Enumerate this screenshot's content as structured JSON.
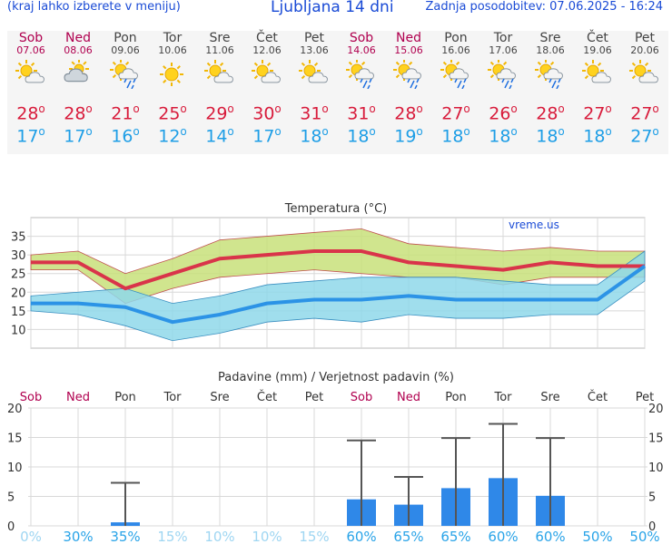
{
  "header": {
    "hint": "(kraj lahko izberete v meniju)",
    "title": "Ljubljana 14 dni",
    "updated": "Zadnja posodobitev: 07.06.2025 - 16:24"
  },
  "days": [
    {
      "name": "Sob",
      "date": "07.06",
      "weekend": true,
      "icon": "partly-cloudy-icon",
      "tmax": "28",
      "tmin": "17"
    },
    {
      "name": "Ned",
      "date": "08.06",
      "weekend": true,
      "icon": "cloudy-sun-icon",
      "tmax": "28",
      "tmin": "17"
    },
    {
      "name": "Pon",
      "date": "09.06",
      "weekend": false,
      "icon": "sun-rain-icon",
      "tmax": "21",
      "tmin": "16"
    },
    {
      "name": "Tor",
      "date": "10.06",
      "weekend": false,
      "icon": "sun-icon",
      "tmax": "25",
      "tmin": "12"
    },
    {
      "name": "Sre",
      "date": "11.06",
      "weekend": false,
      "icon": "partly-cloudy-icon",
      "tmax": "29",
      "tmin": "14"
    },
    {
      "name": "Čet",
      "date": "12.06",
      "weekend": false,
      "icon": "partly-cloudy-icon",
      "tmax": "30",
      "tmin": "17"
    },
    {
      "name": "Pet",
      "date": "13.06",
      "weekend": false,
      "icon": "partly-cloudy-icon",
      "tmax": "31",
      "tmin": "18"
    },
    {
      "name": "Sob",
      "date": "14.06",
      "weekend": true,
      "icon": "sun-rain-icon",
      "tmax": "31",
      "tmin": "18"
    },
    {
      "name": "Ned",
      "date": "15.06",
      "weekend": true,
      "icon": "sun-rain-icon",
      "tmax": "28",
      "tmin": "19"
    },
    {
      "name": "Pon",
      "date": "16.06",
      "weekend": false,
      "icon": "sun-rain-icon",
      "tmax": "27",
      "tmin": "18"
    },
    {
      "name": "Tor",
      "date": "17.06",
      "weekend": false,
      "icon": "sun-rain-icon",
      "tmax": "26",
      "tmin": "18"
    },
    {
      "name": "Sre",
      "date": "18.06",
      "weekend": false,
      "icon": "sun-rain-icon",
      "tmax": "28",
      "tmin": "18"
    },
    {
      "name": "Čet",
      "date": "19.06",
      "weekend": false,
      "icon": "partly-cloudy-icon",
      "tmax": "27",
      "tmin": "18"
    },
    {
      "name": "Pet",
      "date": "20.06",
      "weekend": false,
      "icon": "partly-cloudy-icon",
      "tmax": "27",
      "tmin": "27"
    }
  ],
  "chart_data": [
    {
      "type": "line",
      "title": "Temperatura (°C)",
      "watermark": "vreme.us",
      "ylim": [
        5,
        40
      ],
      "yticks": [
        10,
        15,
        20,
        25,
        30,
        35
      ],
      "grid": true,
      "series": [
        {
          "key": "tmax",
          "color": "#d9344a",
          "values": [
            28,
            28,
            21,
            25,
            29,
            30,
            31,
            31,
            28,
            27,
            26,
            28,
            27,
            27
          ]
        },
        {
          "key": "tmax_upper",
          "color": "#c8e07a",
          "values": [
            30,
            31,
            25,
            29,
            34,
            35,
            36,
            37,
            33,
            32,
            31,
            32,
            31,
            31
          ]
        },
        {
          "key": "tmax_lower",
          "color": "#c8e07a",
          "values": [
            26,
            26,
            17,
            21,
            24,
            25,
            26,
            25,
            24,
            24,
            22,
            24,
            24,
            24
          ]
        },
        {
          "key": "tmin",
          "color": "#2c93e6",
          "values": [
            17,
            17,
            16,
            12,
            14,
            17,
            18,
            18,
            19,
            18,
            18,
            18,
            18,
            27
          ]
        },
        {
          "key": "tmin_upper",
          "color": "#8fd8ea",
          "values": [
            19,
            20,
            21,
            17,
            19,
            22,
            23,
            24,
            24,
            24,
            23,
            22,
            22,
            31
          ]
        },
        {
          "key": "tmin_lower",
          "color": "#8fd8ea",
          "values": [
            15,
            14,
            11,
            7,
            9,
            12,
            13,
            12,
            14,
            13,
            13,
            14,
            14,
            23
          ]
        }
      ]
    },
    {
      "type": "bar",
      "title": "Padavine (mm) / Verjetnost padavin (%)",
      "categories": [
        "Sob",
        "Ned",
        "Pon",
        "Tor",
        "Sre",
        "Čet",
        "Pet",
        "Sob",
        "Ned",
        "Pon",
        "Tor",
        "Sre",
        "Čet",
        "Pet"
      ],
      "weekend": [
        true,
        true,
        false,
        false,
        false,
        false,
        false,
        true,
        true,
        false,
        false,
        false,
        false,
        false
      ],
      "values": [
        0,
        0,
        0.6,
        0,
        0,
        0,
        0,
        4.5,
        3.6,
        6.4,
        8.1,
        5.1,
        0,
        0
      ],
      "error_max": [
        0,
        0,
        7.3,
        0,
        0,
        0,
        0,
        14.5,
        8.3,
        14.9,
        17.3,
        14.9,
        0,
        0
      ],
      "probability": [
        "0%",
        "30%",
        "35%",
        "15%",
        "10%",
        "10%",
        "15%",
        "60%",
        "65%",
        "65%",
        "60%",
        "60%",
        "50%",
        "50%"
      ],
      "probability_values": [
        0,
        30,
        35,
        15,
        10,
        10,
        15,
        60,
        65,
        65,
        60,
        60,
        50,
        50
      ],
      "ylim": [
        0,
        20
      ],
      "yticks": [
        0,
        5,
        10,
        15,
        20
      ],
      "bar_color": "#2f88e8"
    }
  ]
}
